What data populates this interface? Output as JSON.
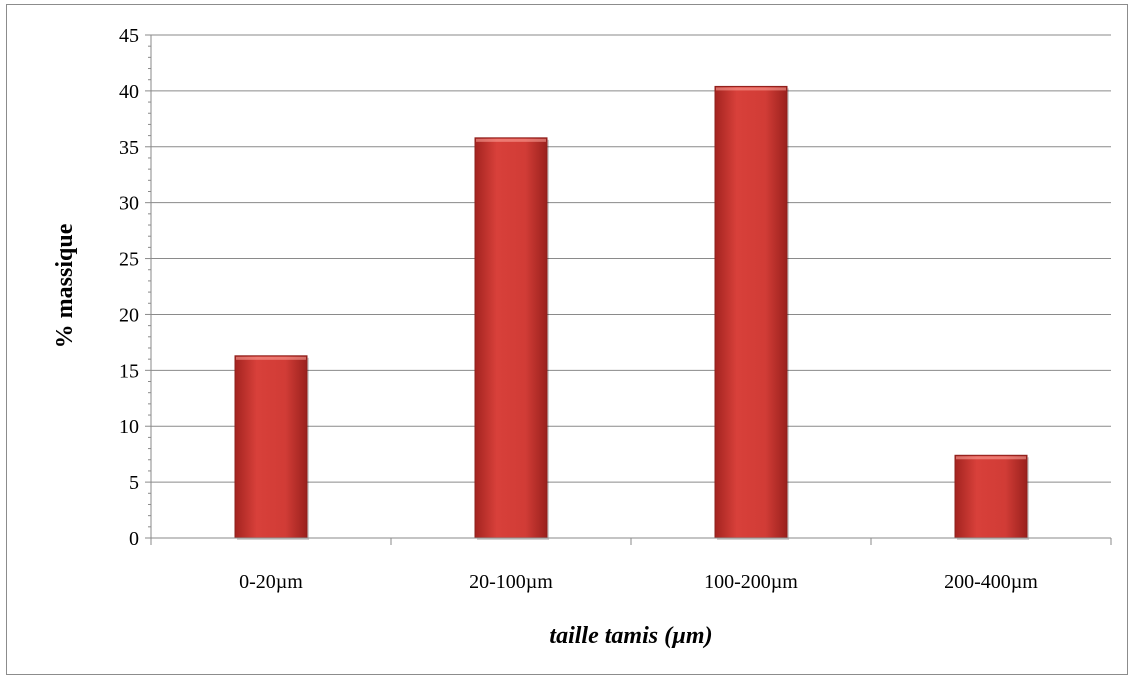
{
  "chart_data": {
    "type": "bar",
    "title": "",
    "xlabel": "taille tamis (µm)",
    "ylabel": "% massique",
    "categories": [
      "0-20µm",
      "20-100µm",
      "100-200µm",
      "200-400µm"
    ],
    "values": [
      16.3,
      35.8,
      40.4,
      7.4
    ],
    "ylim": [
      0,
      45
    ],
    "yticks": [
      0,
      5,
      10,
      15,
      20,
      25,
      30,
      35,
      40,
      45
    ],
    "grid": true,
    "legend": "none",
    "bar_color": "#c0302c"
  }
}
